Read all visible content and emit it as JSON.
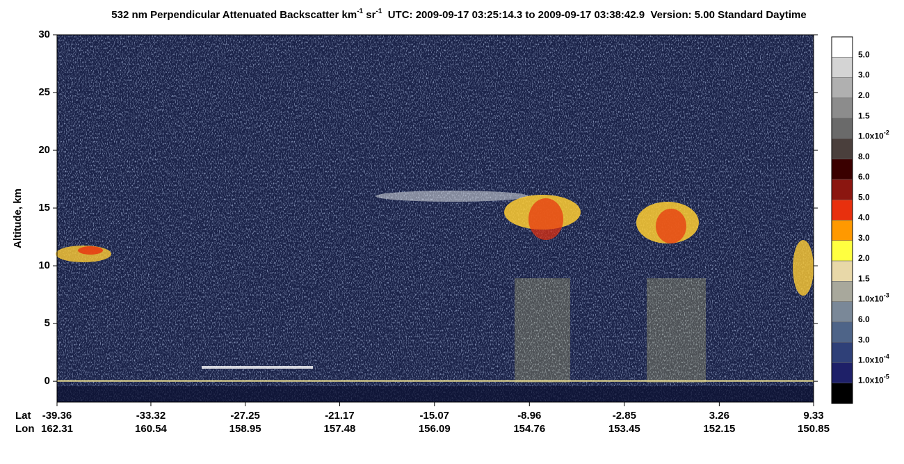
{
  "chart_data": {
    "type": "curtain",
    "title": [
      "532 nm Perpendicular Attenuated Backscatter km",
      "-1",
      " sr",
      "-1",
      "  UTC: 2009-09-17 03:25:14.3 to 2009-09-17 03:38:42.9  Version: 5.00 Standard Daytime"
    ],
    "y_label": "Altitude, km",
    "ylim": [
      -1.8,
      30
    ],
    "yticks": [
      0,
      5,
      10,
      15,
      20,
      25,
      30
    ],
    "x_row_labels": [
      "Lat",
      "Lon"
    ],
    "xlim": [
      -39.36,
      9.33
    ],
    "xticks": [
      -39.36,
      -33.32,
      -27.25,
      -21.17,
      -15.07,
      -8.96,
      -2.85,
      3.26,
      9.33
    ],
    "xtick_lon": [
      162.31,
      160.54,
      158.95,
      157.48,
      156.09,
      154.76,
      153.45,
      152.15,
      150.85
    ],
    "colorbar": {
      "colors": [
        "#ffffff",
        "#d4d4d4",
        "#b0b0b0",
        "#8c8c8c",
        "#6a6a6a",
        "#4a3f3c",
        "#3a0000",
        "#8b1610",
        "#e8300e",
        "#ff9900",
        "#ffff40",
        "#e8d8a8",
        "#a8a89c",
        "#7a8898",
        "#4e6488",
        "#2f4078",
        "#1e2068",
        "#000000"
      ],
      "labels": [
        "5.0",
        "3.0",
        "2.0",
        "1.5",
        {
          "base": "1.0x10",
          "sup": "-2"
        },
        "8.0",
        "6.0",
        "5.0",
        "4.0",
        "3.0",
        "2.0",
        "1.5",
        {
          "base": "1.0x10",
          "sup": "-3"
        },
        "6.0",
        "3.0",
        {
          "base": "1.0x10",
          "sup": "-4"
        },
        {
          "base": "1.0x10",
          "sup": "-5"
        }
      ]
    }
  }
}
